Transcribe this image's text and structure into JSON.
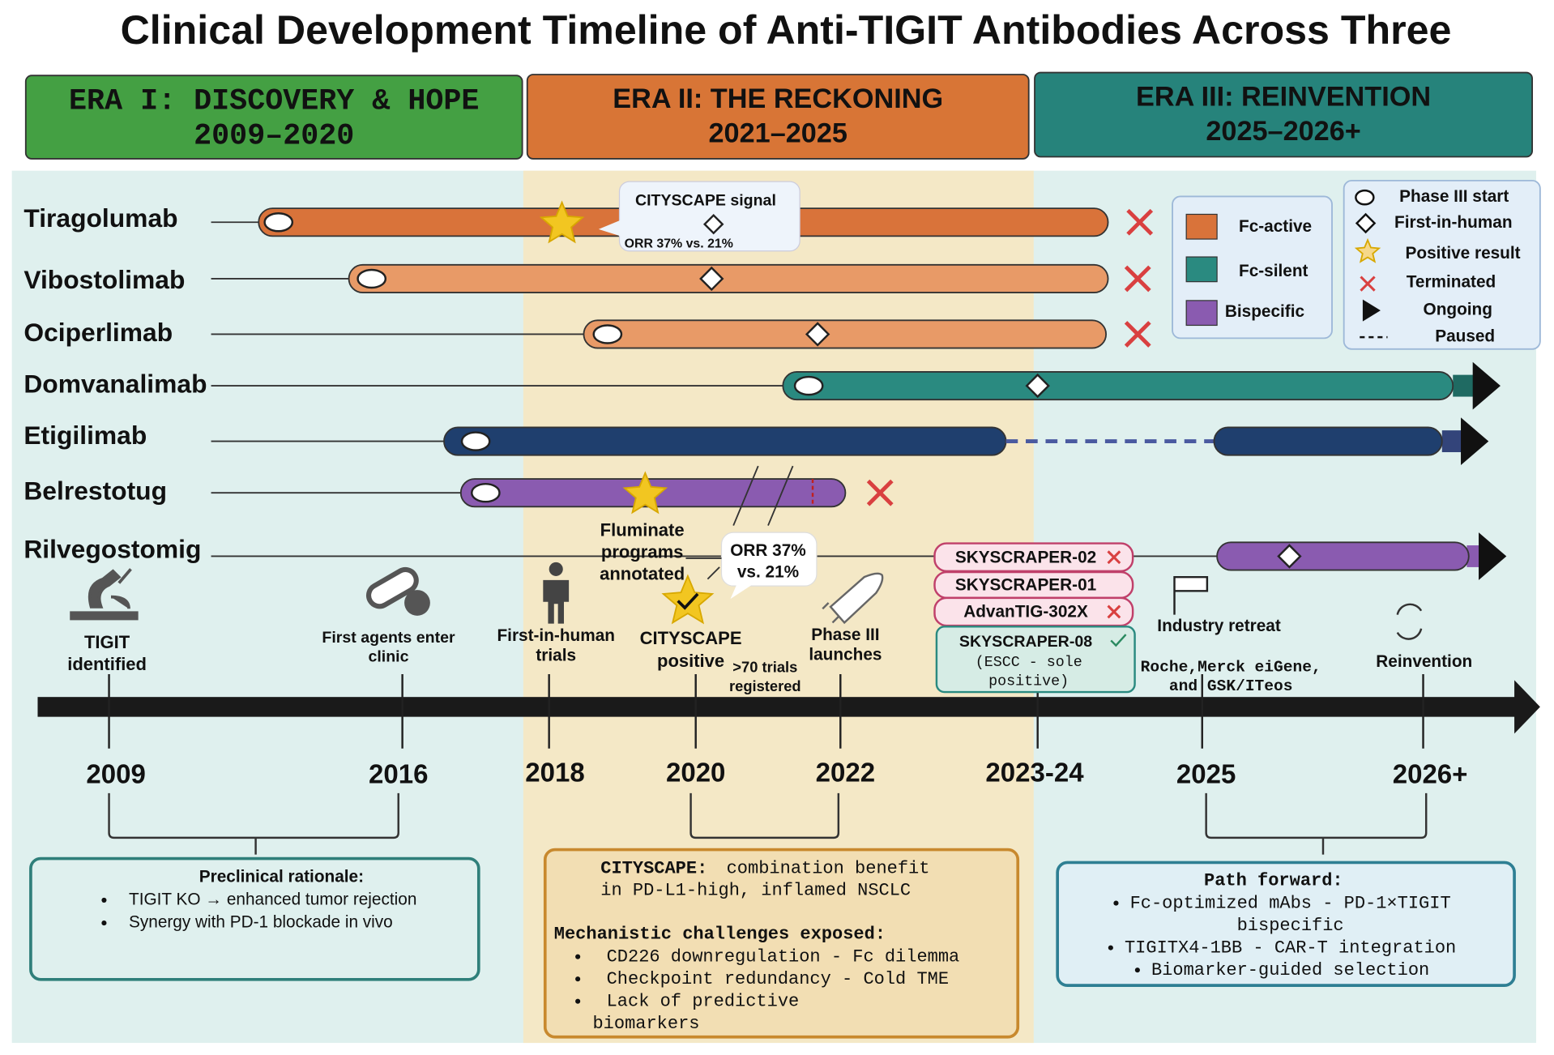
{
  "title": "Clinical Development Timeline of Anti-TIGIT Antibodies Across Three",
  "eras": [
    {
      "title": "ERA I: DISCOVERY & HOPE",
      "years": "2009–2020"
    },
    {
      "title": "ERA II: THE RECKONING",
      "years": "2021–2025"
    },
    {
      "title": "ERA III: REINVENTION",
      "years": "2025–2026+"
    }
  ],
  "antibodies": [
    "Tiragolumab",
    "Vibostolimab",
    "Ociperlimab",
    "Domvanalimab",
    "Etigilimab",
    "Belrestotug",
    "Rilvegostomig"
  ],
  "signal_callout": {
    "title": "CITYSCAPE signal",
    "detail": "ORR 37% vs. 21%"
  },
  "legend_class": [
    "Fc-active",
    "Fc-silent",
    "Bispecific"
  ],
  "legend_markers": [
    "Phase III start",
    "First-in-human",
    "Positive result",
    "Terminated",
    "Ongoing",
    "Paused"
  ],
  "years": [
    "2009",
    "2016",
    "2018",
    "2020",
    "2022",
    "2023-24",
    "2025",
    "2026+"
  ],
  "milestones": [
    [
      "TIGIT",
      "identified"
    ],
    [
      "First agents enter",
      "clinic"
    ],
    [
      "First-in-human",
      "trials"
    ],
    [
      "CITYSCAPE",
      "positive"
    ],
    [
      ">70 trials",
      "registered"
    ],
    [
      "Phase III",
      "launches"
    ],
    [
      "Fluminate",
      "programs",
      "annotated"
    ],
    [
      "ORR 37%",
      "vs. 21%"
    ],
    [
      "Industry retreat"
    ],
    [
      "Roche,Merck eiGene,",
      "and GSK/ITeos"
    ],
    [
      "Reinvention"
    ]
  ],
  "trials": [
    {
      "name": "SKYSCRAPER-02"
    },
    {
      "name": "SKYSCRAPER-01"
    },
    {
      "name": "AdvanTIG-302X"
    },
    {
      "name": "SKYSCRAPER-08",
      "note": [
        "(ESCC - sole",
        "positive)"
      ]
    }
  ],
  "preclinical": {
    "title": "Preclinical rationale:",
    "bullets": [
      "TIGIT KO → enhanced tumor rejection",
      "Synergy with PD-1 blockade in vivo"
    ]
  },
  "cityscape": {
    "lead": "CITYSCAPE:",
    "text": [
      "combination benefit",
      "in PD-L1-high, inflamed NSCLC"
    ],
    "heading": "Mechanistic challenges exposed:",
    "bullets": [
      [
        "CD226 downregulation - Fc dilemma"
      ],
      [
        "Checkpoint redundancy - Cold TME"
      ],
      [
        "Lack      of      predictive",
        "biomarkers"
      ]
    ]
  },
  "path_forward": {
    "title": "Path forward:",
    "bullets": [
      [
        "Fc-optimized mAbs - PD-1×TIGIT",
        "bispecific"
      ],
      [
        "TIGITX4-1BB - CAR-T integration"
      ],
      [
        "Biomarker-guided selection"
      ]
    ]
  }
}
